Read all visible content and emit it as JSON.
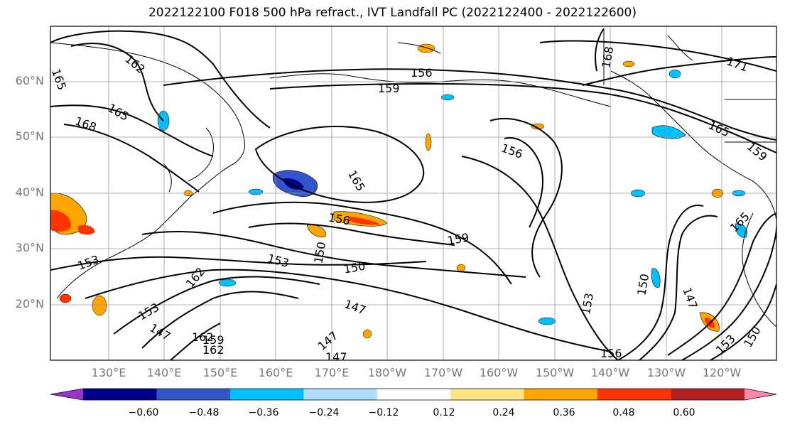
{
  "title": "2022122100 F018 500 hPa refract., IVT Landfall PC (2022122400 - 2022122600)",
  "lat_labels": [
    "60°N",
    "50°N",
    "40°N",
    "30°N",
    "20°N"
  ],
  "lon_labels": [
    "130°E",
    "140°E",
    "150°E",
    "160°E",
    "170°E",
    "180°W",
    "170°W",
    "160°W",
    "150°W",
    "140°W",
    "130°W",
    "120°W"
  ],
  "colorbar": {
    "tick_labels": [
      "−0.60",
      "−0.48",
      "−0.36",
      "−0.24",
      "−0.12",
      "0.12",
      "0.24",
      "0.36",
      "0.48",
      "0.60"
    ],
    "colors": [
      "#9933cc",
      "#000088",
      "#3355cc",
      "#00bfff",
      "#aaddff",
      "#ffffff",
      "#ffe680",
      "#ffa500",
      "#ff3300",
      "#b22222",
      "#ff88aa"
    ]
  },
  "contour_labels": [
    "165",
    "162",
    "165",
    "168",
    "156",
    "159",
    "165",
    "156",
    "168",
    "171",
    "165",
    "159",
    "165",
    "156",
    "159",
    "153",
    "150",
    "150",
    "153",
    "147",
    "153",
    "147",
    "147",
    "156",
    "153",
    "150",
    "162",
    "159",
    "162",
    "147",
    "147",
    "150",
    "153",
    "162"
  ]
}
